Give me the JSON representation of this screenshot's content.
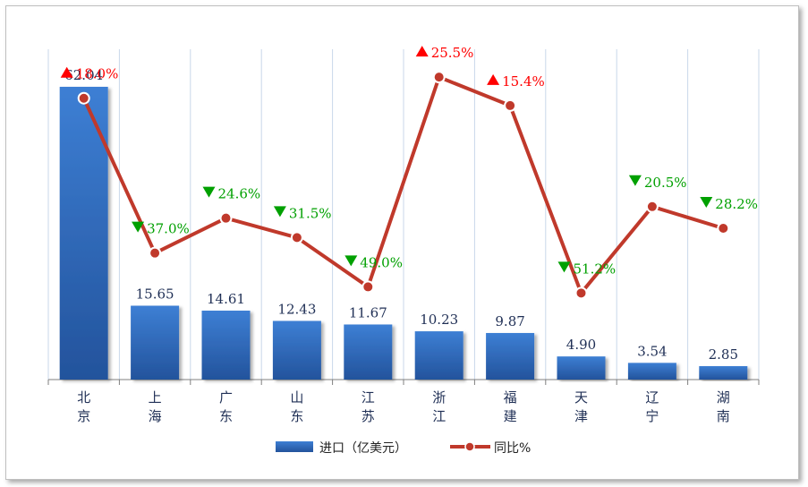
{
  "chart_data": {
    "type": "bar",
    "categories": [
      [
        "北",
        "京"
      ],
      [
        "上",
        "海"
      ],
      [
        "广",
        "东"
      ],
      [
        "山",
        "东"
      ],
      [
        "江",
        "苏"
      ],
      [
        "浙",
        "江"
      ],
      [
        "福",
        "建"
      ],
      [
        "天",
        "津"
      ],
      [
        "辽",
        "宁"
      ],
      [
        "湖",
        "南"
      ]
    ],
    "series": [
      {
        "name": "进口（亿美元）",
        "kind": "bar",
        "color": "#2f66b6",
        "values": [
          62.04,
          15.65,
          14.61,
          12.43,
          11.67,
          10.23,
          9.87,
          4.9,
          3.54,
          2.85
        ],
        "labels": [
          "62.04",
          "15.65",
          "14.61",
          "12.43",
          "11.67",
          "10.23",
          "9.87",
          "4.90",
          "3.54",
          "2.85"
        ]
      },
      {
        "name": "同比%",
        "kind": "line",
        "color": "#c0392b",
        "values": [
          18.0,
          -37.0,
          -24.6,
          -31.5,
          -49.0,
          25.5,
          15.4,
          -51.2,
          -20.5,
          -28.2
        ],
        "labels": [
          "18.0%",
          "37.0%",
          "24.6%",
          "31.5%",
          "49.0%",
          "25.5%",
          "15.4%",
          "51.2%",
          "20.5%",
          "28.2%"
        ]
      }
    ],
    "up_color": "#ff0000",
    "down_color": "#00a000",
    "legend_position": "bottom",
    "grid": "vertical"
  }
}
